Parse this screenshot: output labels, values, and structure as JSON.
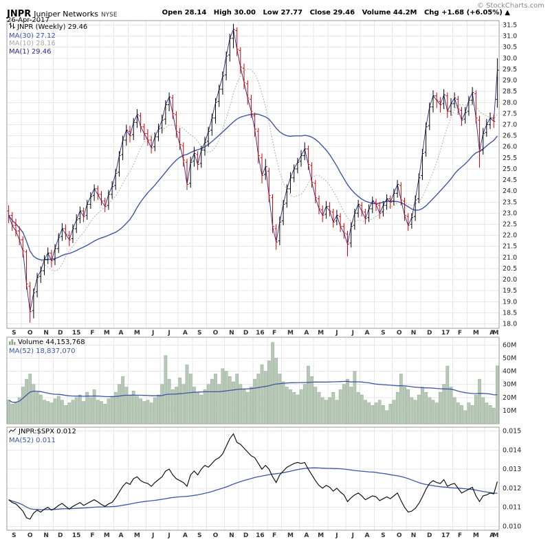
{
  "header": {
    "symbol": "JNPR",
    "company": "Juniper Networks",
    "exchange": "NYSE",
    "date": "26-Apr-2017",
    "copyright": "© StockCharts.com",
    "quote": [
      {
        "label": "Open",
        "value": "28.14"
      },
      {
        "label": "High",
        "value": "30.00"
      },
      {
        "label": "Low",
        "value": "27.77"
      },
      {
        "label": "Close",
        "value": "29.46"
      },
      {
        "label": "Volume",
        "value": "44.2M"
      },
      {
        "label": "Chg",
        "value": "+1.68 (+6.05%) ▲"
      }
    ]
  },
  "legends": {
    "price": {
      "main": "JNPR (Weekly) 29.46",
      "ma30": "MA(30) 27.12",
      "ma10": "MA(10) 28.16",
      "ma1": "MA(1) 29.46"
    },
    "volume": {
      "main": "Volume 44,153,768",
      "ma52": "MA(52) 18,837,070"
    },
    "ratio": {
      "main": "JNPR:$SPX 0.012",
      "ma52": "MA(52) 0.011"
    }
  },
  "colors": {
    "bar_up": "#000000",
    "bar_down": "#cc0000",
    "ma30": "#3c55a5",
    "ma10": "#bbbbbb",
    "ma1": "#26268c",
    "volume_fill": "#b6c9b6",
    "volume_stroke": "#90a890",
    "volume_ma": "#3c55a5",
    "ratio_line": "#111111",
    "ratio_ma": "#3c55a5",
    "grid": "#e7e7e7",
    "pane_border": "#999999",
    "axis_text": "#222222",
    "month_text": "#333333"
  },
  "chart_data": {
    "type": "ohlc+volume+ratio",
    "timeframe": "weekly",
    "symbol": "JNPR",
    "months": [
      [
        "S",
        4
      ],
      [
        "O",
        5
      ],
      [
        "N",
        4
      ],
      [
        "D",
        4
      ],
      [
        "15",
        5
      ],
      [
        "F",
        4
      ],
      [
        "M",
        4
      ],
      [
        "A",
        4
      ],
      [
        "M",
        5
      ],
      [
        "J",
        4
      ],
      [
        "J",
        5
      ],
      [
        "A",
        4
      ],
      [
        "S",
        4
      ],
      [
        "O",
        5
      ],
      [
        "N",
        4
      ],
      [
        "D",
        4
      ],
      [
        "16",
        4
      ],
      [
        "F",
        4
      ],
      [
        "M",
        5
      ],
      [
        "A",
        4
      ],
      [
        "M",
        4
      ],
      [
        "J",
        5
      ],
      [
        "J",
        4
      ],
      [
        "A",
        4
      ],
      [
        "S",
        5
      ],
      [
        "O",
        4
      ],
      [
        "N",
        4
      ],
      [
        "D",
        5
      ],
      [
        "17",
        4
      ],
      [
        "F",
        4
      ],
      [
        "M",
        5
      ],
      [
        "A",
        4
      ],
      [
        "M",
        0
      ]
    ],
    "price": {
      "type": "ohlc",
      "y_axis": {
        "min": 18.0,
        "max": 31.5,
        "step": 0.5
      },
      "ma_overlays": [
        30,
        10,
        1
      ],
      "ohlc": [
        [
          23.1,
          23.35,
          22.55,
          22.9
        ],
        [
          22.9,
          23.05,
          22.2,
          22.45
        ],
        [
          22.45,
          22.75,
          21.95,
          22.2
        ],
        [
          22.2,
          22.4,
          21.55,
          21.8
        ],
        [
          21.8,
          21.95,
          21.0,
          21.3
        ],
        [
          21.25,
          21.35,
          19.55,
          19.8
        ],
        [
          19.7,
          19.9,
          18.05,
          18.55
        ],
        [
          18.6,
          19.6,
          18.25,
          19.4
        ],
        [
          19.45,
          20.3,
          19.2,
          20.1
        ],
        [
          20.15,
          20.6,
          19.85,
          20.4
        ],
        [
          20.4,
          21.1,
          20.2,
          20.9
        ],
        [
          20.9,
          21.45,
          20.7,
          21.2
        ],
        [
          21.2,
          21.35,
          20.55,
          20.85
        ],
        [
          20.9,
          21.6,
          20.65,
          21.4
        ],
        [
          21.4,
          22.1,
          21.2,
          21.9
        ],
        [
          21.95,
          22.55,
          21.75,
          22.3
        ],
        [
          22.3,
          22.5,
          21.8,
          22.05
        ],
        [
          22.0,
          22.2,
          21.5,
          21.8
        ],
        [
          21.85,
          22.5,
          21.65,
          22.3
        ],
        [
          22.3,
          22.95,
          22.1,
          22.7
        ],
        [
          22.75,
          23.3,
          22.55,
          23.1
        ],
        [
          23.1,
          23.25,
          22.6,
          22.85
        ],
        [
          22.9,
          23.6,
          22.7,
          23.4
        ],
        [
          23.4,
          23.95,
          23.2,
          23.75
        ],
        [
          23.8,
          24.3,
          23.55,
          24.1
        ],
        [
          24.1,
          24.25,
          23.6,
          23.85
        ],
        [
          23.85,
          24.0,
          23.35,
          23.55
        ],
        [
          23.55,
          23.7,
          23.05,
          23.3
        ],
        [
          23.35,
          24.05,
          23.15,
          23.85
        ],
        [
          23.85,
          24.45,
          23.65,
          24.2
        ],
        [
          24.25,
          25.0,
          24.05,
          24.8
        ],
        [
          24.85,
          25.8,
          24.65,
          25.6
        ],
        [
          25.65,
          26.5,
          25.4,
          26.3
        ],
        [
          26.3,
          27.0,
          26.05,
          26.75
        ],
        [
          26.7,
          26.95,
          26.2,
          26.5
        ],
        [
          26.55,
          27.3,
          26.3,
          27.1
        ],
        [
          27.1,
          27.7,
          26.85,
          27.45
        ],
        [
          27.4,
          27.55,
          26.65,
          26.9
        ],
        [
          26.9,
          27.05,
          26.3,
          26.6
        ],
        [
          26.6,
          26.8,
          26.05,
          26.3
        ],
        [
          26.3,
          26.5,
          25.7,
          25.95
        ],
        [
          26.0,
          26.65,
          25.8,
          26.45
        ],
        [
          26.45,
          27.05,
          26.25,
          26.8
        ],
        [
          26.85,
          27.45,
          26.6,
          27.2
        ],
        [
          27.25,
          28.1,
          27.0,
          27.9
        ],
        [
          27.9,
          28.45,
          27.6,
          28.25
        ],
        [
          28.2,
          28.35,
          27.25,
          27.5
        ],
        [
          27.45,
          27.6,
          26.4,
          26.7
        ],
        [
          26.65,
          26.85,
          25.85,
          26.1
        ],
        [
          26.05,
          26.2,
          25.1,
          25.4
        ],
        [
          25.3,
          25.45,
          24.05,
          24.3
        ],
        [
          24.35,
          25.55,
          24.15,
          25.3
        ],
        [
          25.35,
          26.0,
          25.1,
          25.7
        ],
        [
          25.65,
          25.8,
          24.95,
          25.2
        ],
        [
          25.25,
          26.05,
          25.05,
          25.85
        ],
        [
          25.85,
          26.45,
          25.6,
          26.2
        ],
        [
          26.25,
          26.9,
          26.0,
          26.7
        ],
        [
          26.75,
          27.5,
          26.5,
          27.3
        ],
        [
          27.3,
          28.2,
          27.05,
          28.0
        ],
        [
          28.05,
          28.8,
          27.8,
          28.6
        ],
        [
          28.6,
          29.4,
          28.35,
          29.2
        ],
        [
          29.25,
          30.3,
          29.0,
          30.1
        ],
        [
          30.15,
          31.1,
          29.85,
          30.9
        ],
        [
          30.9,
          31.55,
          30.45,
          31.3
        ],
        [
          31.25,
          31.4,
          30.1,
          30.4
        ],
        [
          30.35,
          30.5,
          29.3,
          29.6
        ],
        [
          29.55,
          29.75,
          28.6,
          28.9
        ],
        [
          28.85,
          29.0,
          27.9,
          28.2
        ],
        [
          28.15,
          28.35,
          27.3,
          27.6
        ],
        [
          27.4,
          27.55,
          26.45,
          26.8
        ],
        [
          26.7,
          26.85,
          25.25,
          25.6
        ],
        [
          25.5,
          25.7,
          24.35,
          24.7
        ],
        [
          24.75,
          25.45,
          24.5,
          25.1
        ],
        [
          24.9,
          25.05,
          23.5,
          23.8
        ],
        [
          23.7,
          23.85,
          22.1,
          22.4
        ],
        [
          22.3,
          22.5,
          21.35,
          21.7
        ],
        [
          21.75,
          22.85,
          21.55,
          22.6
        ],
        [
          22.65,
          23.6,
          22.45,
          23.4
        ],
        [
          23.45,
          24.3,
          23.25,
          24.1
        ],
        [
          24.1,
          24.85,
          23.9,
          24.6
        ],
        [
          24.6,
          25.2,
          24.4,
          25.0
        ],
        [
          25.0,
          25.5,
          24.8,
          25.3
        ],
        [
          25.35,
          25.85,
          25.1,
          25.6
        ],
        [
          25.6,
          26.2,
          25.4,
          25.9
        ],
        [
          25.9,
          26.05,
          24.95,
          25.2
        ],
        [
          25.15,
          25.3,
          24.15,
          24.4
        ],
        [
          24.35,
          24.5,
          23.45,
          23.7
        ],
        [
          23.65,
          23.8,
          22.95,
          23.2
        ],
        [
          23.15,
          23.35,
          22.6,
          22.9
        ],
        [
          22.95,
          23.55,
          22.75,
          23.3
        ],
        [
          23.3,
          23.5,
          22.85,
          23.1
        ],
        [
          23.05,
          23.2,
          22.35,
          22.6
        ],
        [
          22.65,
          23.15,
          22.45,
          22.9
        ],
        [
          22.85,
          23.0,
          22.15,
          22.4
        ],
        [
          22.4,
          22.55,
          21.85,
          22.1
        ],
        [
          22.05,
          22.2,
          21.05,
          21.6
        ],
        [
          21.65,
          22.6,
          21.45,
          22.4
        ],
        [
          22.45,
          23.2,
          22.25,
          23.0
        ],
        [
          23.0,
          23.6,
          22.8,
          23.4
        ],
        [
          23.35,
          23.5,
          22.85,
          23.1
        ],
        [
          23.05,
          23.2,
          22.5,
          22.75
        ],
        [
          22.8,
          23.4,
          22.6,
          23.2
        ],
        [
          23.2,
          23.75,
          23.0,
          23.55
        ],
        [
          23.5,
          23.65,
          23.1,
          23.4
        ],
        [
          23.35,
          23.5,
          22.75,
          23.0
        ],
        [
          23.05,
          23.55,
          22.85,
          23.35
        ],
        [
          23.35,
          23.85,
          23.15,
          23.65
        ],
        [
          23.65,
          23.8,
          23.2,
          23.5
        ],
        [
          23.55,
          24.1,
          23.35,
          23.9
        ],
        [
          23.9,
          24.5,
          23.7,
          24.3
        ],
        [
          24.25,
          24.4,
          23.35,
          23.6
        ],
        [
          23.55,
          23.7,
          22.65,
          22.9
        ],
        [
          22.85,
          23.0,
          22.2,
          22.45
        ],
        [
          22.5,
          23.0,
          22.3,
          22.8
        ],
        [
          22.85,
          23.8,
          22.65,
          23.6
        ],
        [
          23.65,
          24.8,
          23.45,
          24.6
        ],
        [
          24.7,
          25.9,
          24.5,
          25.7
        ],
        [
          25.75,
          27.1,
          25.55,
          26.9
        ],
        [
          26.95,
          28.0,
          26.75,
          27.8
        ],
        [
          27.8,
          28.55,
          27.55,
          28.3
        ],
        [
          28.3,
          28.45,
          27.75,
          28.1
        ],
        [
          28.05,
          28.25,
          27.55,
          27.9
        ],
        [
          27.95,
          28.6,
          27.7,
          28.35
        ],
        [
          28.3,
          28.45,
          27.3,
          27.6
        ],
        [
          27.6,
          28.2,
          27.4,
          27.95
        ],
        [
          27.95,
          28.45,
          27.75,
          28.2
        ],
        [
          28.15,
          28.3,
          27.45,
          27.7
        ],
        [
          27.65,
          27.8,
          26.95,
          27.2
        ],
        [
          27.25,
          27.8,
          27.05,
          27.55
        ],
        [
          27.6,
          28.3,
          27.4,
          28.1
        ],
        [
          28.1,
          28.7,
          27.9,
          28.45
        ],
        [
          28.4,
          28.55,
          27.05,
          27.3
        ],
        [
          27.2,
          27.4,
          25.05,
          25.8
        ],
        [
          25.85,
          26.85,
          25.65,
          26.6
        ],
        [
          26.65,
          27.25,
          26.45,
          27.0
        ],
        [
          27.0,
          27.55,
          26.8,
          27.3
        ],
        [
          27.3,
          27.45,
          26.85,
          27.15
        ],
        [
          28.14,
          30.0,
          27.77,
          29.46
        ]
      ]
    },
    "volume": {
      "type": "bar",
      "unit": "millions",
      "y_axis": {
        "min": 10,
        "max": 60,
        "step": 10
      },
      "ma_period": 52,
      "values": [
        18,
        15,
        16,
        20,
        28,
        34,
        38,
        30,
        24,
        22,
        18,
        17,
        16,
        19,
        21,
        18,
        14,
        16,
        18,
        20,
        22,
        17,
        24,
        20,
        26,
        18,
        17,
        15,
        19,
        21,
        24,
        30,
        36,
        28,
        22,
        25,
        21,
        19,
        17,
        18,
        16,
        20,
        22,
        30,
        52,
        34,
        26,
        28,
        35,
        30,
        45,
        38,
        28,
        24,
        22,
        26,
        30,
        34,
        38,
        30,
        42,
        40,
        36,
        32,
        38,
        30,
        26,
        24,
        28,
        34,
        38,
        45,
        40,
        48,
        62,
        50,
        38,
        32,
        28,
        26,
        24,
        22,
        26,
        30,
        44,
        36,
        28,
        24,
        20,
        18,
        20,
        24,
        18,
        26,
        30,
        34,
        28,
        40,
        24,
        22,
        18,
        16,
        14,
        16,
        18,
        14,
        10,
        15,
        18,
        24,
        38,
        28,
        26,
        20,
        18,
        22,
        28,
        24,
        20,
        18,
        16,
        24,
        30,
        44,
        28,
        20,
        16,
        14,
        10,
        16,
        14,
        22,
        34,
        20,
        16,
        14,
        12,
        44.15
      ]
    },
    "ratio": {
      "type": "line",
      "name": "JNPR:$SPX",
      "y_axis": {
        "min": 0.01,
        "max": 0.015,
        "step": 0.001
      },
      "ma_period": 52,
      "values": [
        0.0114,
        0.01125,
        0.01118,
        0.011,
        0.0108,
        0.01045,
        0.01038,
        0.0107,
        0.01085,
        0.01075,
        0.0109,
        0.011,
        0.01085,
        0.01095,
        0.0111,
        0.0112,
        0.01105,
        0.0109,
        0.01105,
        0.01115,
        0.01125,
        0.0111,
        0.0112,
        0.0113,
        0.0114,
        0.01128,
        0.01115,
        0.01105,
        0.01118,
        0.01126,
        0.0115,
        0.0118,
        0.0121,
        0.0123,
        0.0122,
        0.0125,
        0.0126,
        0.0124,
        0.0123,
        0.01225,
        0.0121,
        0.0123,
        0.01245,
        0.0126,
        0.0129,
        0.013,
        0.0127,
        0.0125,
        0.0124,
        0.0123,
        0.0121,
        0.0127,
        0.0129,
        0.0127,
        0.013,
        0.0132,
        0.0131,
        0.0133,
        0.0135,
        0.0136,
        0.0138,
        0.0142,
        0.0146,
        0.01485,
        0.0144,
        0.0143,
        0.0141,
        0.0139,
        0.0137,
        0.0136,
        0.0133,
        0.013,
        0.0132,
        0.013,
        0.0126,
        0.0123,
        0.0127,
        0.0129,
        0.0131,
        0.0132,
        0.0133,
        0.01335,
        0.0133,
        0.01335,
        0.013,
        0.0127,
        0.0124,
        0.01215,
        0.012,
        0.01215,
        0.01205,
        0.01185,
        0.012,
        0.0118,
        0.01165,
        0.0113,
        0.0115,
        0.01165,
        0.01175,
        0.0116,
        0.0114,
        0.0115,
        0.0116,
        0.01155,
        0.01135,
        0.01145,
        0.01155,
        0.01145,
        0.0116,
        0.01175,
        0.01135,
        0.011,
        0.01075,
        0.0108,
        0.01095,
        0.0112,
        0.01155,
        0.01195,
        0.01225,
        0.0124,
        0.0123,
        0.01225,
        0.01245,
        0.0121,
        0.0122,
        0.01225,
        0.012,
        0.01175,
        0.01185,
        0.01195,
        0.01205,
        0.0116,
        0.0113,
        0.0116,
        0.01165,
        0.01175,
        0.0117,
        0.01235
      ]
    }
  }
}
